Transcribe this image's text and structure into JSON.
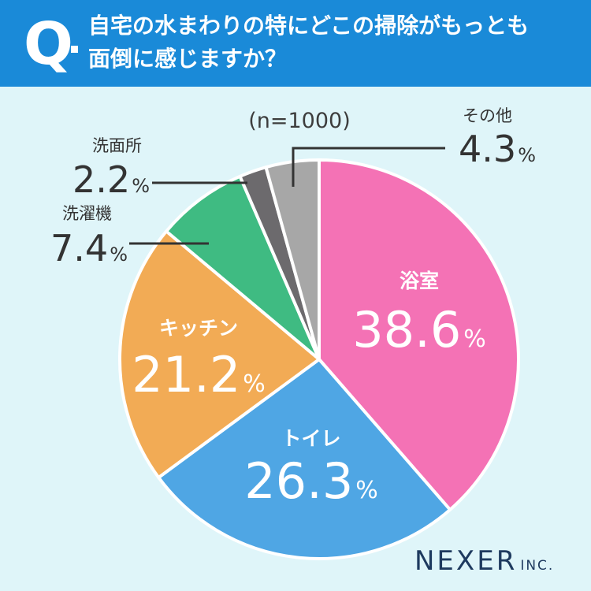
{
  "question": {
    "mark": "Q",
    "line1": "自宅の水まわりの特にどこの掃除がもっとも",
    "line2": "面倒に感じますか？"
  },
  "sample_note": "(n=1000)",
  "brand": {
    "name": "NEXER",
    "suffix": "INC."
  },
  "colors": {
    "header": "#1a8ad8",
    "background": "#dff5f9",
    "bathroom": "#f472b5",
    "toilet": "#4fa6e4",
    "kitchen": "#f2ab55",
    "washing_machine": "#3fbb82",
    "washroom": "#6c6a6d",
    "other": "#a7a7a7"
  },
  "chart_data": {
    "type": "pie",
    "unit": "%",
    "slices": [
      {
        "label": "浴室",
        "value": 38.6,
        "value_text": "38.6",
        "color": "#f472b5"
      },
      {
        "label": "トイレ",
        "value": 26.3,
        "value_text": "26.3",
        "color": "#4fa6e4"
      },
      {
        "label": "キッチン",
        "value": 21.2,
        "value_text": "21.2",
        "color": "#f2ab55"
      },
      {
        "label": "洗濯機",
        "value": 7.4,
        "value_text": "7.4",
        "color": "#3fbb82"
      },
      {
        "label": "洗面所",
        "value": 2.2,
        "value_text": "2.2",
        "color": "#6c6a6d"
      },
      {
        "label": "その他",
        "value": 4.3,
        "value_text": "4.3",
        "color": "#a7a7a7"
      }
    ]
  }
}
